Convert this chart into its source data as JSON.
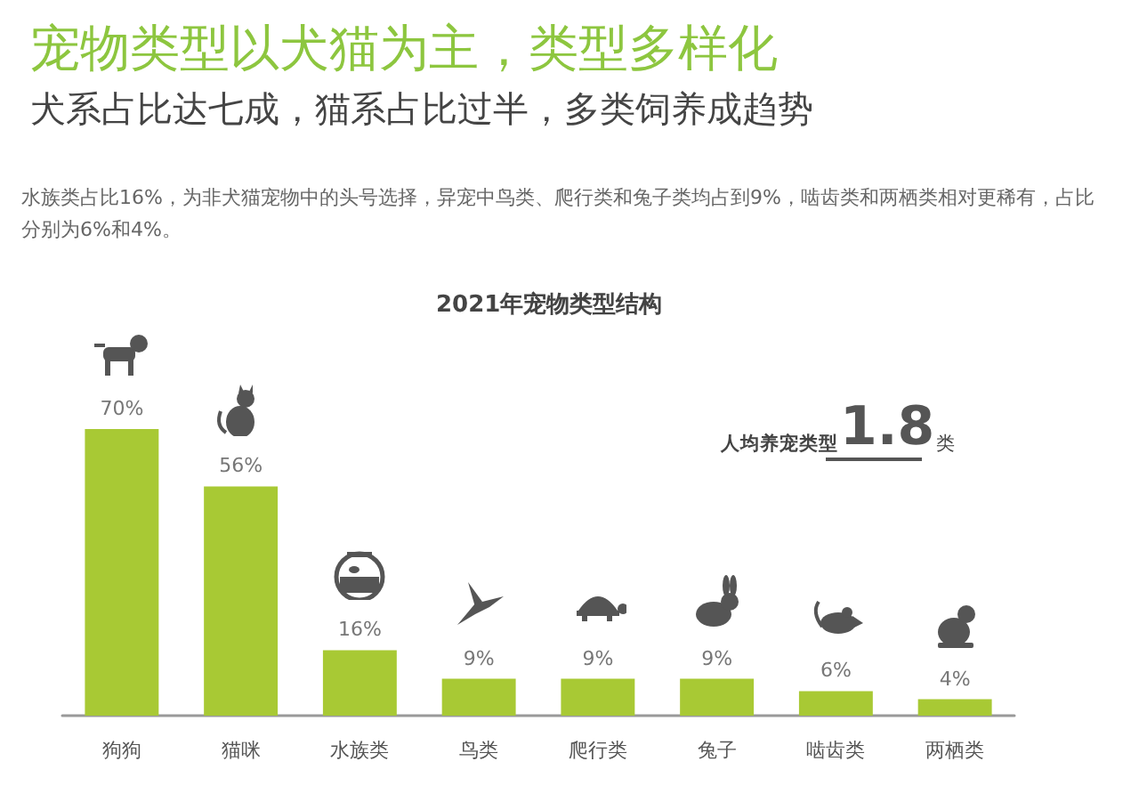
{
  "chart_data": {
    "type": "bar",
    "title": "宠物类型以犬猫为主，类型多样化",
    "subtitle": "犬系占比达七成，猫系占比过半，多类饲养成趋势",
    "annotations": [
      "水族类占比16%，为非犬猫宠物中的头号选择，异宠中鸟类、爬行类和兔子类均占到9%，啮齿类和两栖类相对更稀有，占比分别为6%和4%。",
      "2021年宠物类型结构",
      "人均养宠类型",
      "1.8",
      "类"
    ],
    "categories": [
      "狗狗",
      "猫咪",
      "水族类",
      "鸟类",
      "爬行类",
      "兔子",
      "啮齿类",
      "两栖类"
    ],
    "values": [
      70,
      56,
      16,
      9,
      9,
      9,
      6,
      4
    ],
    "value_labels": [
      "70%",
      "56%",
      "16%",
      "9%",
      "9%",
      "9%",
      "6%",
      "4%"
    ],
    "color": "#a8c934",
    "ylim": [
      0,
      70
    ],
    "tick_labels": "x"
  }
}
